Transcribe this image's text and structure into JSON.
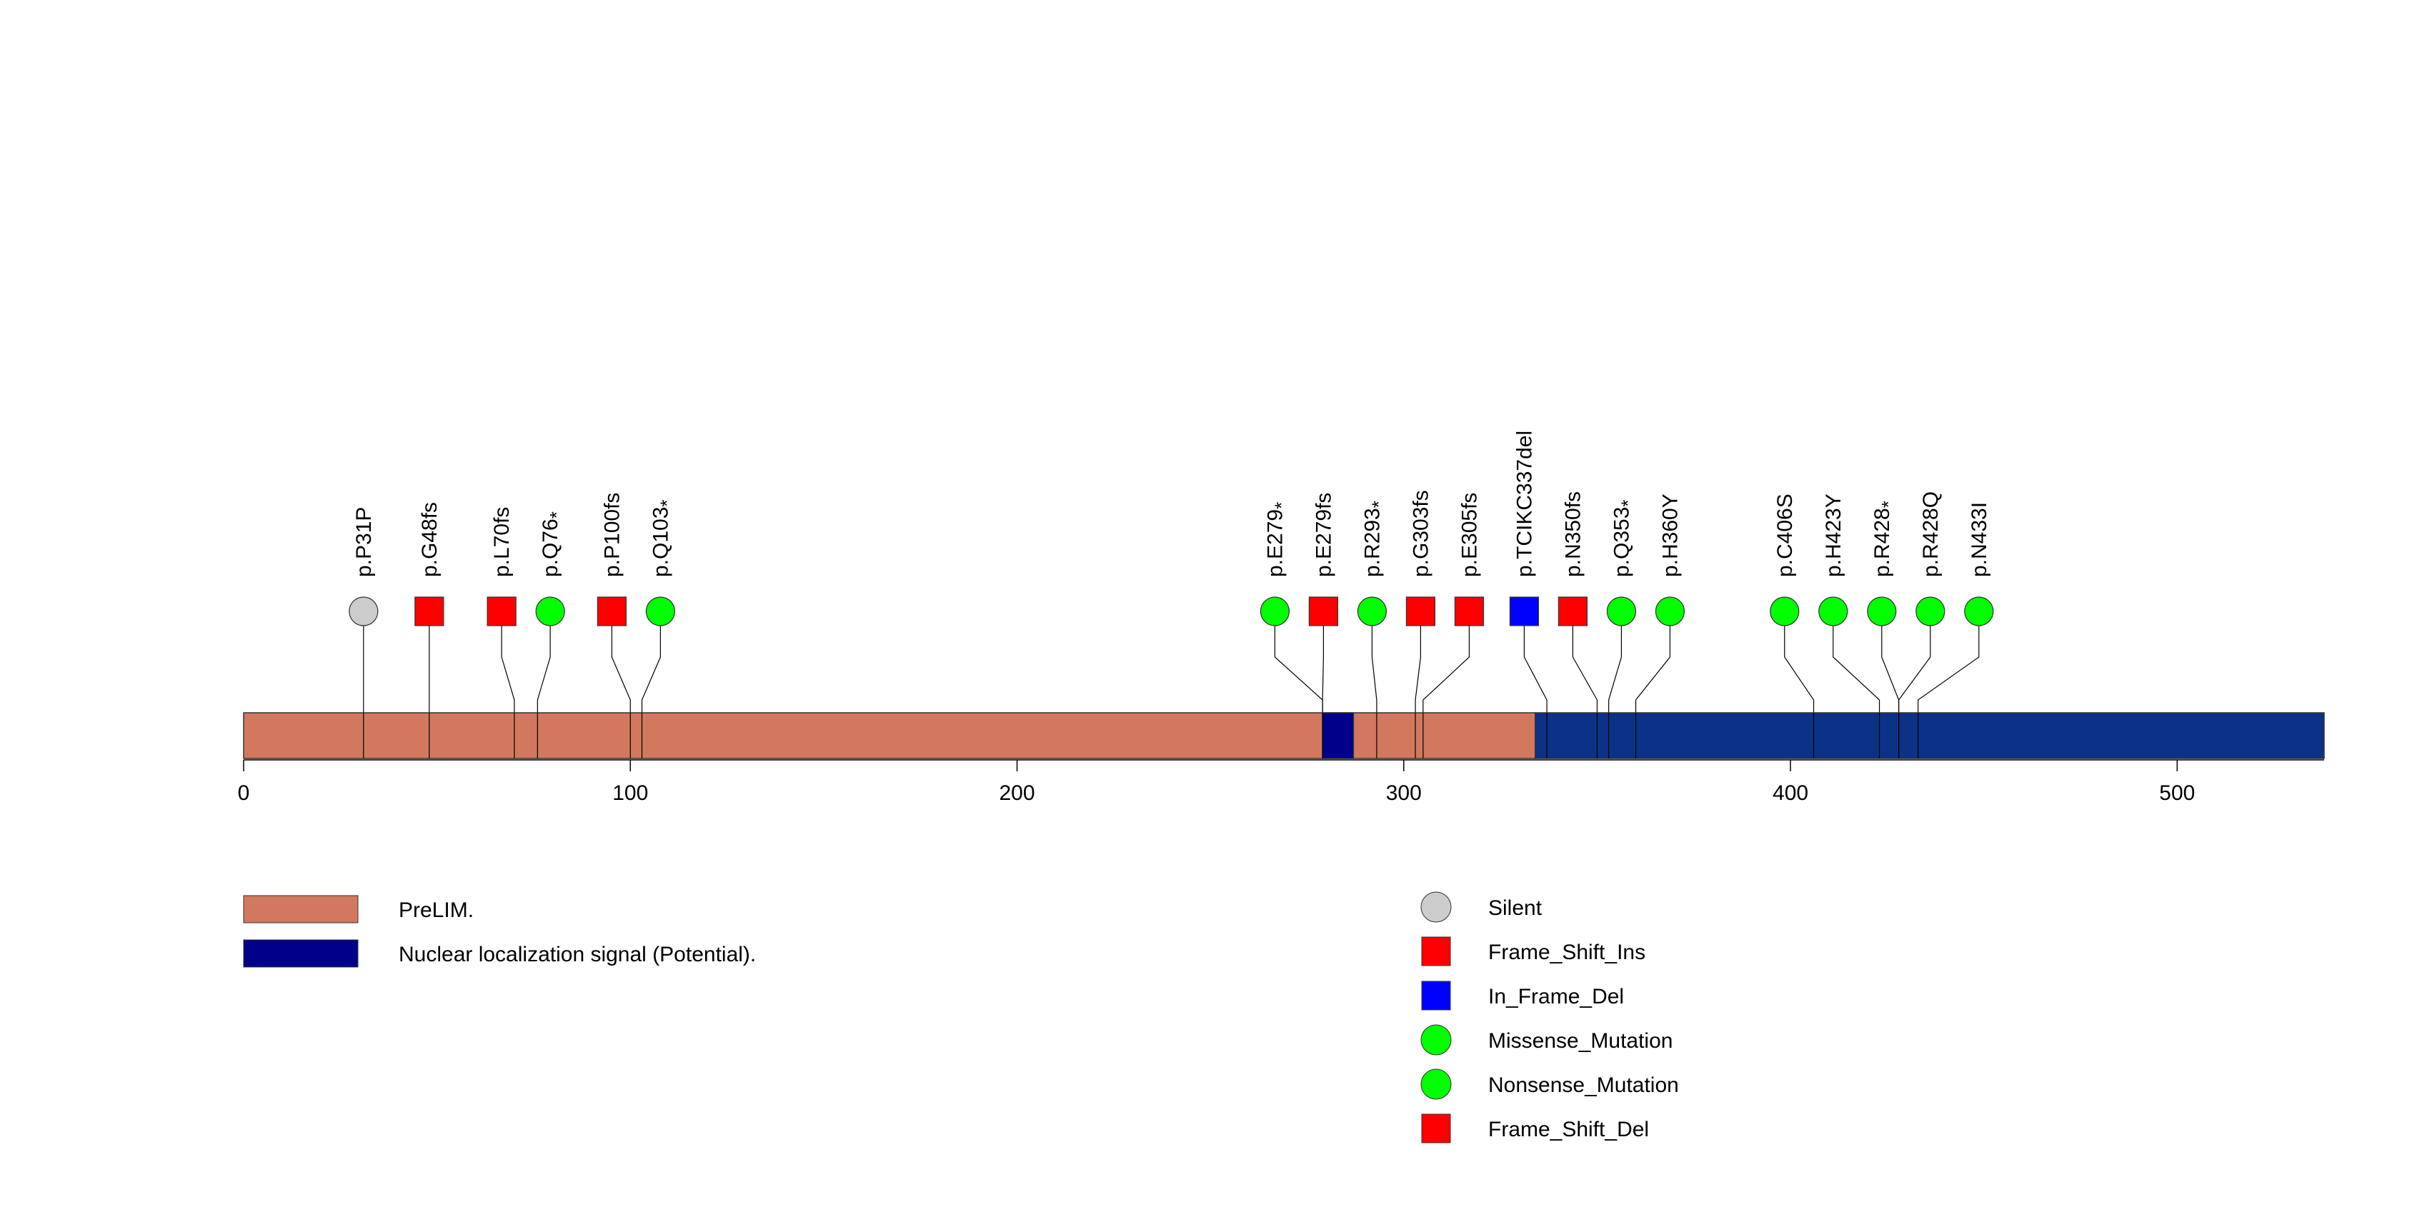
{
  "chart_data": {
    "type": "lollipop",
    "protein_length": 538,
    "x_axis": {
      "range": [
        0,
        538
      ],
      "ticks": [
        0,
        100,
        200,
        300,
        400,
        500
      ],
      "tick_labels": [
        "0",
        "100",
        "200",
        "300",
        "400",
        "500"
      ]
    },
    "domains": [
      {
        "name": "PreLIM.",
        "start": 0,
        "end": 334,
        "color": "#D2785E"
      },
      {
        "name": "Nuclear localization signal (Potential).",
        "start": 279,
        "end": 287,
        "color": "#00008B"
      },
      {
        "name": "Nuclear localization signal (Potential).",
        "start": 334,
        "end": 538,
        "color": "#0B3286"
      }
    ],
    "mutations": [
      {
        "label": "p.P31P",
        "position": 31,
        "type": "Silent",
        "nonsense": false
      },
      {
        "label": "p.G48fs",
        "position": 48,
        "type": "Frame_Shift_Ins",
        "nonsense": false
      },
      {
        "label": "p.L70fs",
        "position": 70,
        "type": "Frame_Shift_Ins",
        "nonsense": false
      },
      {
        "label": "p.Q76",
        "position": 76,
        "type": "Nonsense_Mutation",
        "nonsense": true
      },
      {
        "label": "p.P100fs",
        "position": 100,
        "type": "Frame_Shift_Del",
        "nonsense": false
      },
      {
        "label": "p.Q103",
        "position": 103,
        "type": "Nonsense_Mutation",
        "nonsense": true
      },
      {
        "label": "p.E279",
        "position": 279,
        "type": "Nonsense_Mutation",
        "nonsense": true
      },
      {
        "label": "p.E279fs",
        "position": 279,
        "type": "Frame_Shift_Del",
        "nonsense": false
      },
      {
        "label": "p.R293",
        "position": 293,
        "type": "Nonsense_Mutation",
        "nonsense": true
      },
      {
        "label": "p.G303fs",
        "position": 303,
        "type": "Frame_Shift_Del",
        "nonsense": false
      },
      {
        "label": "p.E305fs",
        "position": 305,
        "type": "Frame_Shift_Del",
        "nonsense": false
      },
      {
        "label": "p.TCIKC337del",
        "position": 337,
        "type": "In_Frame_Del",
        "nonsense": false
      },
      {
        "label": "p.N350fs",
        "position": 350,
        "type": "Frame_Shift_Ins",
        "nonsense": false
      },
      {
        "label": "p.Q353",
        "position": 353,
        "type": "Nonsense_Mutation",
        "nonsense": true
      },
      {
        "label": "p.H360Y",
        "position": 360,
        "type": "Missense_Mutation",
        "nonsense": false
      },
      {
        "label": "p.C406S",
        "position": 406,
        "type": "Missense_Mutation",
        "nonsense": false
      },
      {
        "label": "p.H423Y",
        "position": 423,
        "type": "Missense_Mutation",
        "nonsense": false
      },
      {
        "label": "p.R428",
        "position": 428,
        "type": "Nonsense_Mutation",
        "nonsense": true
      },
      {
        "label": "p.R428Q",
        "position": 428,
        "type": "Missense_Mutation",
        "nonsense": false
      },
      {
        "label": "p.N433I",
        "position": 433,
        "type": "Missense_Mutation",
        "nonsense": false
      }
    ],
    "domain_legend": [
      {
        "name": "PreLIM.",
        "color": "#D2785E"
      },
      {
        "name": "Nuclear localization signal (Potential).",
        "color": "#00008B"
      }
    ],
    "mutation_legend": [
      {
        "name": "Silent",
        "shape": "circle",
        "color": "#CCCCCC"
      },
      {
        "name": "Frame_Shift_Ins",
        "shape": "square",
        "color": "#FF0000"
      },
      {
        "name": "In_Frame_Del",
        "shape": "square",
        "color": "#0000FF"
      },
      {
        "name": "Missense_Mutation",
        "shape": "circle",
        "color": "#00FF00"
      },
      {
        "name": "Nonsense_Mutation",
        "shape": "circle",
        "color": "#00FF00"
      },
      {
        "name": "Frame_Shift_Del",
        "shape": "square",
        "color": "#FF0000"
      }
    ],
    "nonsense_suffix": "*"
  }
}
